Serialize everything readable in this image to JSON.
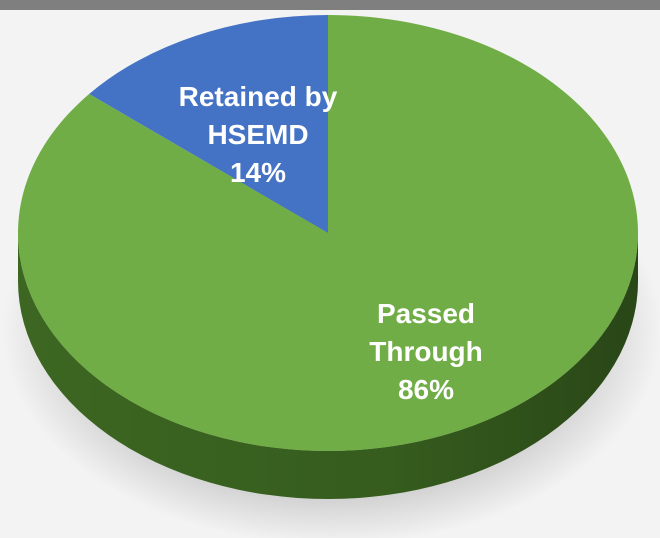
{
  "chart_data": {
    "type": "pie",
    "title": "",
    "slices": [
      {
        "name_lines": [
          "Retained by",
          "HSEMD"
        ],
        "percent_label": "14%",
        "value": 14,
        "color": "#4472c4",
        "side_color": "#2e4f8a"
      },
      {
        "name_lines": [
          "Passed",
          "Through"
        ],
        "percent_label": "86%",
        "value": 86,
        "color": "#70ad47",
        "side_color": "#3f6c23"
      }
    ],
    "style": "3d"
  }
}
